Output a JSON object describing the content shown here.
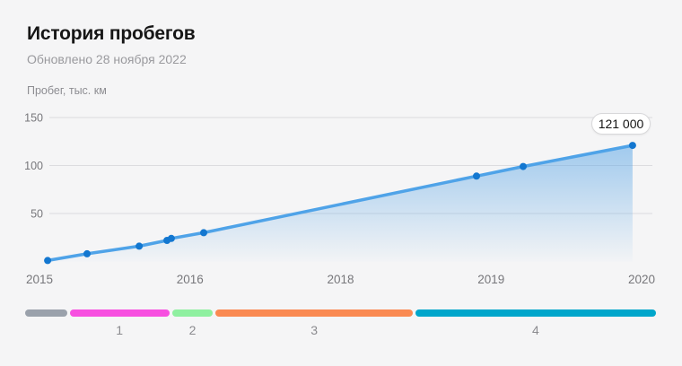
{
  "header": {
    "title": "История пробегов",
    "subtitle": "Обновлено 28 ноября 2022"
  },
  "chart_data": {
    "type": "area",
    "title": "История пробегов",
    "subtitle": "Обновлено 28 ноября 2022",
    "ylabel": "Пробег, тыс. км",
    "x_tick_labels": [
      "2015",
      "2016",
      "2018",
      "2019",
      "2020"
    ],
    "y_ticks": [
      150,
      100,
      50
    ],
    "ylim": [
      0,
      165
    ],
    "grid": true,
    "points": [
      {
        "t": 0.054,
        "value": 1
      },
      {
        "t": 0.316,
        "value": 8
      },
      {
        "t": 0.662,
        "value": 16
      },
      {
        "t": 0.847,
        "value": 22
      },
      {
        "t": 0.876,
        "value": 24
      },
      {
        "t": 1.091,
        "value": 30
      },
      {
        "t": 2.903,
        "value": 89
      },
      {
        "t": 3.213,
        "value": 99
      },
      {
        "t": 3.94,
        "value": 121
      }
    ],
    "last_value_label": "121 000",
    "colors": {
      "line": "#4fa3e8",
      "marker": "#1377d0",
      "area_top": "#5ba6e6",
      "grid": "#dcdcdf",
      "tick_text": "#77777b"
    }
  },
  "ownership_bar": {
    "segments": [
      {
        "label": "",
        "color": "#9aa1ab",
        "grow": 47
      },
      {
        "label": "1",
        "color": "#f74fe0",
        "grow": 111
      },
      {
        "label": "2",
        "color": "#8ff0a0",
        "grow": 46
      },
      {
        "label": "3",
        "color": "#fa8a52",
        "grow": 220
      },
      {
        "label": "4",
        "color": "#00a6cb",
        "grow": 269
      }
    ]
  }
}
